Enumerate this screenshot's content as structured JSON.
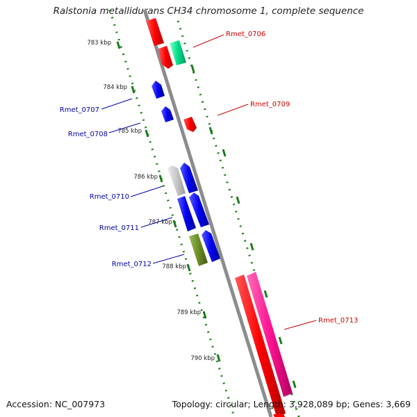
{
  "title": "Ralstonia metallidurans CH34 chromosome 1, complete sequence",
  "footer": {
    "accession": "Accession: NC_007973",
    "summary": "Topology: circular; Length: 3,928,089 bp; Genes: 3,669"
  },
  "ticks": [
    "783 kbp",
    "784 kbp",
    "785 kbp",
    "786 kbp",
    "787 kbp",
    "788 kbp",
    "789 kbp",
    "790 kbp"
  ],
  "labels": {
    "right": [
      "Rmet_0706",
      "Rmet_0709",
      "Rmet_0713"
    ],
    "left": [
      "Rmet_0707",
      "Rmet_0708",
      "Rmet_0710",
      "Rmet_0711",
      "Rmet_0712"
    ]
  },
  "colors": {
    "backbone": "#8c8c8c",
    "tick": "#1a7a1a",
    "label_right": "#cc0000",
    "label_left": "#0000aa",
    "red_gene": "#ff0000",
    "blue_gene": "#0000ee",
    "pink_gene": "#ff1493",
    "green_gene": "#00dd88",
    "gray_gene": "#c8c8c8",
    "olive_gene": "#6b8e23"
  }
}
